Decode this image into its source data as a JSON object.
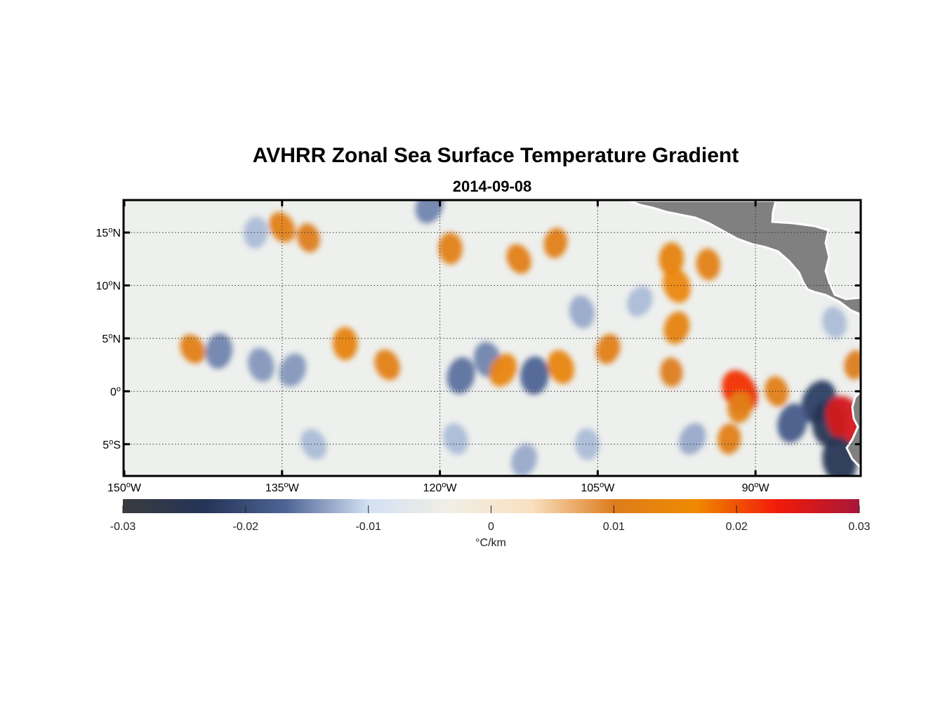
{
  "title": "AVHRR Zonal Sea Surface Temperature Gradient",
  "subtitle": "2014-09-08",
  "map": {
    "lon_range": [
      -150,
      -80
    ],
    "lat_range": [
      -8,
      18
    ],
    "lon_ticks": [
      {
        "value": -150,
        "deg": "150",
        "hemi": "W"
      },
      {
        "value": -135,
        "deg": "135",
        "hemi": "W"
      },
      {
        "value": -120,
        "deg": "120",
        "hemi": "W"
      },
      {
        "value": -105,
        "deg": "105",
        "hemi": "W"
      },
      {
        "value": -90,
        "deg": "90",
        "hemi": "W"
      }
    ],
    "lat_ticks": [
      {
        "value": 15,
        "deg": "15",
        "hemi": "N"
      },
      {
        "value": 10,
        "deg": "10",
        "hemi": "N"
      },
      {
        "value": 5,
        "deg": "5",
        "hemi": "N"
      },
      {
        "value": 0,
        "deg": "0",
        "hemi": ""
      },
      {
        "value": -5,
        "deg": "5",
        "hemi": "S"
      }
    ],
    "grid": true,
    "land_color": "#808080",
    "ocean_base_color": "#eef0ee"
  },
  "colorbar": {
    "range": [
      -0.03,
      0.03
    ],
    "ticks": [
      "-0.03",
      "-0.02",
      "-0.01",
      "0",
      "0.01",
      "0.02",
      "0.03"
    ],
    "unit_label": "°C/km",
    "colors": [
      "#3a3b3e",
      "#243457",
      "#4f6596",
      "#d3e1f3",
      "#f1eee5",
      "#f9e0c0",
      "#dd7c1d",
      "#ef8a00",
      "#f21a08",
      "#a7173a"
    ]
  },
  "chart_data": {
    "type": "heatmap",
    "title": "AVHRR Zonal Sea Surface Temperature Gradient",
    "subtitle": "2014-09-08",
    "xlabel": "",
    "ylabel": "",
    "xlim": [
      -150,
      -80
    ],
    "ylim": [
      -8,
      18
    ],
    "value_range": [
      -0.03,
      0.03
    ],
    "colorbar_label": "°C/km",
    "features": [
      {
        "lon": -135,
        "lat": 15.5,
        "value": 0.012
      },
      {
        "lon": -137.5,
        "lat": 15,
        "value": -0.012
      },
      {
        "lon": -132.5,
        "lat": 14.5,
        "value": 0.01
      },
      {
        "lon": -121,
        "lat": 17.5,
        "value": -0.015
      },
      {
        "lon": -119,
        "lat": 13.5,
        "value": 0.012
      },
      {
        "lon": -112.5,
        "lat": 12.5,
        "value": 0.011
      },
      {
        "lon": -109,
        "lat": 14,
        "value": 0.011
      },
      {
        "lon": -106.5,
        "lat": 7.5,
        "value": -0.013
      },
      {
        "lon": -101,
        "lat": 8.5,
        "value": -0.012
      },
      {
        "lon": -98,
        "lat": 12.5,
        "value": 0.013
      },
      {
        "lon": -97.5,
        "lat": 10,
        "value": 0.015
      },
      {
        "lon": -97.5,
        "lat": 6,
        "value": 0.013
      },
      {
        "lon": -94.5,
        "lat": 12,
        "value": 0.012
      },
      {
        "lon": -143.5,
        "lat": 4,
        "value": 0.011
      },
      {
        "lon": -141,
        "lat": 3.8,
        "value": -0.015
      },
      {
        "lon": -137,
        "lat": 2.5,
        "value": -0.014
      },
      {
        "lon": -134,
        "lat": 2,
        "value": -0.014
      },
      {
        "lon": -129,
        "lat": 4.5,
        "value": 0.013
      },
      {
        "lon": -125,
        "lat": 2.5,
        "value": 0.012
      },
      {
        "lon": -118,
        "lat": 1.5,
        "value": -0.016
      },
      {
        "lon": -115.5,
        "lat": 3,
        "value": -0.015
      },
      {
        "lon": -114,
        "lat": 2,
        "value": 0.014
      },
      {
        "lon": -111,
        "lat": 1.5,
        "value": -0.017
      },
      {
        "lon": -108.5,
        "lat": 2.3,
        "value": 0.014
      },
      {
        "lon": -104,
        "lat": 4,
        "value": 0.011
      },
      {
        "lon": -98,
        "lat": 1.8,
        "value": 0.01
      },
      {
        "lon": -91.5,
        "lat": 0,
        "value": 0.022
      },
      {
        "lon": -91.5,
        "lat": -1.5,
        "value": 0.012
      },
      {
        "lon": -88,
        "lat": 0,
        "value": 0.011
      },
      {
        "lon": -84,
        "lat": -1,
        "value": -0.022
      },
      {
        "lon": -83,
        "lat": -3,
        "value": -0.024
      },
      {
        "lon": -81.5,
        "lat": -2.7,
        "value": 0.026
      },
      {
        "lon": -86.5,
        "lat": -3,
        "value": -0.018
      },
      {
        "lon": -82,
        "lat": -6.5,
        "value": -0.024
      },
      {
        "lon": -96,
        "lat": -4.5,
        "value": -0.013
      },
      {
        "lon": -92.5,
        "lat": -4.5,
        "value": 0.011
      },
      {
        "lon": -118.5,
        "lat": -4.5,
        "value": -0.012
      },
      {
        "lon": -112,
        "lat": -6.5,
        "value": -0.013
      },
      {
        "lon": -106,
        "lat": -5,
        "value": -0.012
      },
      {
        "lon": -132,
        "lat": -5,
        "value": -0.012
      },
      {
        "lon": -80.5,
        "lat": 2.5,
        "value": 0.01
      },
      {
        "lon": -82.5,
        "lat": 6.5,
        "value": -0.012
      }
    ],
    "land": [
      "Central America",
      "South America"
    ]
  }
}
